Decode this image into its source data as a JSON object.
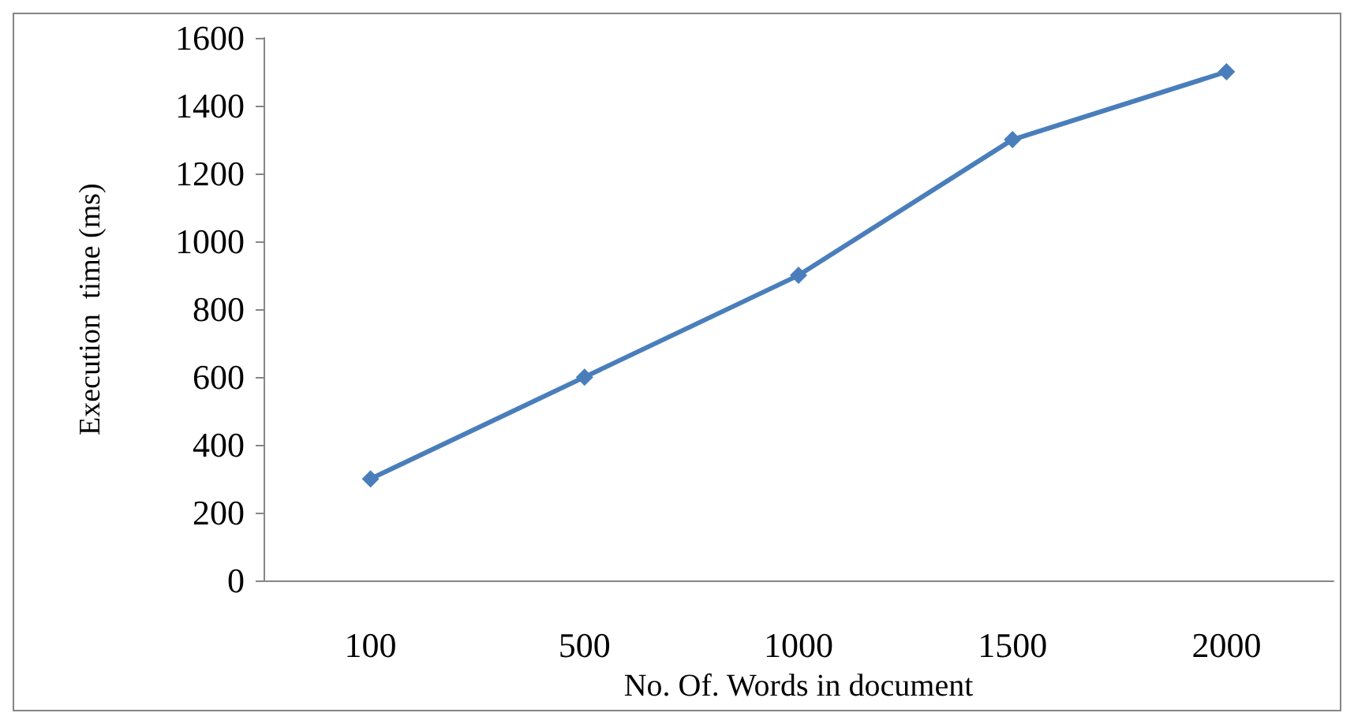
{
  "chart_data": {
    "type": "line",
    "xlabel": "No. Of. Words in document",
    "ylabel": "Execution  time (ms)",
    "categories": [
      "100",
      "500",
      "1000",
      "1500",
      "2000"
    ],
    "series": [
      {
        "color": "#4a7ebb",
        "values": [
          300,
          600,
          900,
          1300,
          1500
        ]
      }
    ],
    "ylim": [
      0,
      1600
    ],
    "yticks": [
      0,
      200,
      400,
      600,
      800,
      1000,
      1200,
      1400,
      1600
    ],
    "grid": false,
    "marker": "diamond",
    "line_style": "solid"
  }
}
